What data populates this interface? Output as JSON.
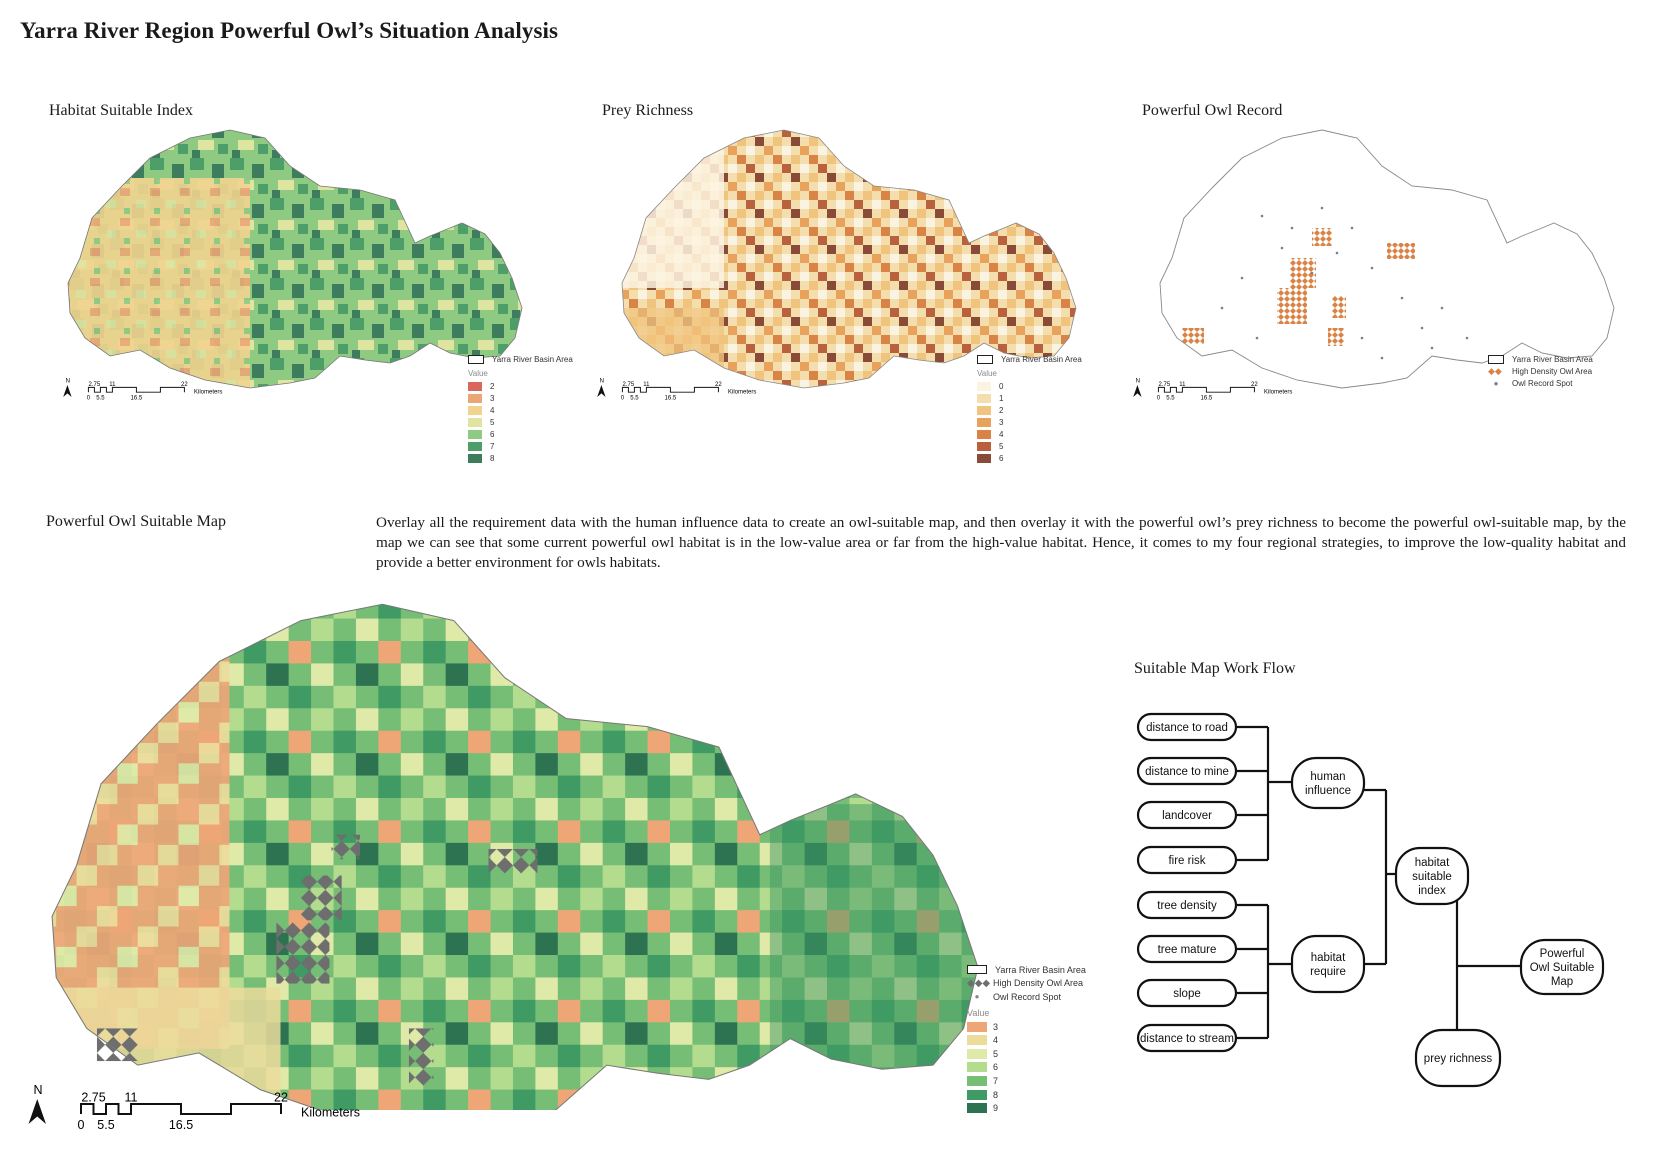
{
  "title": "Yarra River Region Powerful Owl’s Situation Analysis",
  "panels": {
    "hsi": {
      "title": "Habitat Suitable Index",
      "basin_label": "Yarra River Basin Area",
      "value_label": "Value",
      "legend": [
        {
          "label": "2",
          "color": "#d9685a"
        },
        {
          "label": "3",
          "color": "#eba675"
        },
        {
          "label": "4",
          "color": "#f1d38f"
        },
        {
          "label": "5",
          "color": "#dfe4a0"
        },
        {
          "label": "6",
          "color": "#8fca83"
        },
        {
          "label": "7",
          "color": "#4e9e6a"
        },
        {
          "label": "8",
          "color": "#3d7c5d"
        }
      ]
    },
    "prey": {
      "title": "Prey Richness",
      "basin_label": "Yarra River Basin Area",
      "value_label": "Value",
      "legend": [
        {
          "label": "0",
          "color": "#fbf3e1"
        },
        {
          "label": "1",
          "color": "#f5deae"
        },
        {
          "label": "2",
          "color": "#f1c47e"
        },
        {
          "label": "3",
          "color": "#e9a25b"
        },
        {
          "label": "4",
          "color": "#d98446"
        },
        {
          "label": "5",
          "color": "#b9613c"
        },
        {
          "label": "6",
          "color": "#8a4a38"
        }
      ]
    },
    "owl": {
      "title": "Powerful Owl Record",
      "legend": {
        "basin": "Yarra River Basin Area",
        "density": "High Density Owl Area",
        "spot": "Owl Record Spot"
      }
    },
    "suitable": {
      "title": "Powerful Owl Suitable Map",
      "legend": {
        "basin": "Yarra River Basin Area",
        "density": "High Density Owl Area",
        "spot": "Owl Record Spot",
        "value_label": "Value",
        "values": [
          {
            "label": "3",
            "color": "#eea677"
          },
          {
            "label": "4",
            "color": "#ecdc9c"
          },
          {
            "label": "5",
            "color": "#dfe9a8"
          },
          {
            "label": "6",
            "color": "#b4dc8f"
          },
          {
            "label": "7",
            "color": "#76bd76"
          },
          {
            "label": "8",
            "color": "#3f9a63"
          },
          {
            "label": "9",
            "color": "#2d7352"
          }
        ]
      }
    }
  },
  "scale": {
    "north": "N",
    "ticks_top": [
      "2.75",
      "11",
      "22"
    ],
    "ticks_bottom": [
      "0",
      "5.5",
      "16.5"
    ],
    "unit": "Kilometers"
  },
  "description": "Overlay all the requirement data with the human influence data to create an owl-suitable map, and then overlay it with the powerful owl’s prey richness to become the powerful owl-suitable map, by the map we can see that some current powerful owl habitat is in the low-value area or far from the high-value habitat. Hence, it comes to my four regional strategies, to improve the low-quality habitat and provide a better environment for owls habitats.",
  "workflow": {
    "title": "Suitable Map Work Flow",
    "inputs_human": [
      "distance to road",
      "distance to mine",
      "landcover",
      "fire risk"
    ],
    "inputs_habitat": [
      "tree density",
      "tree mature",
      "slope",
      "distance to stream"
    ],
    "human": [
      "human",
      "influence"
    ],
    "habitat": [
      "habitat",
      "require"
    ],
    "hsi": [
      "habitat",
      "suitable",
      "index"
    ],
    "prey": "prey richness",
    "output": [
      "Powerful",
      "Owl Suitable",
      "Map"
    ]
  }
}
